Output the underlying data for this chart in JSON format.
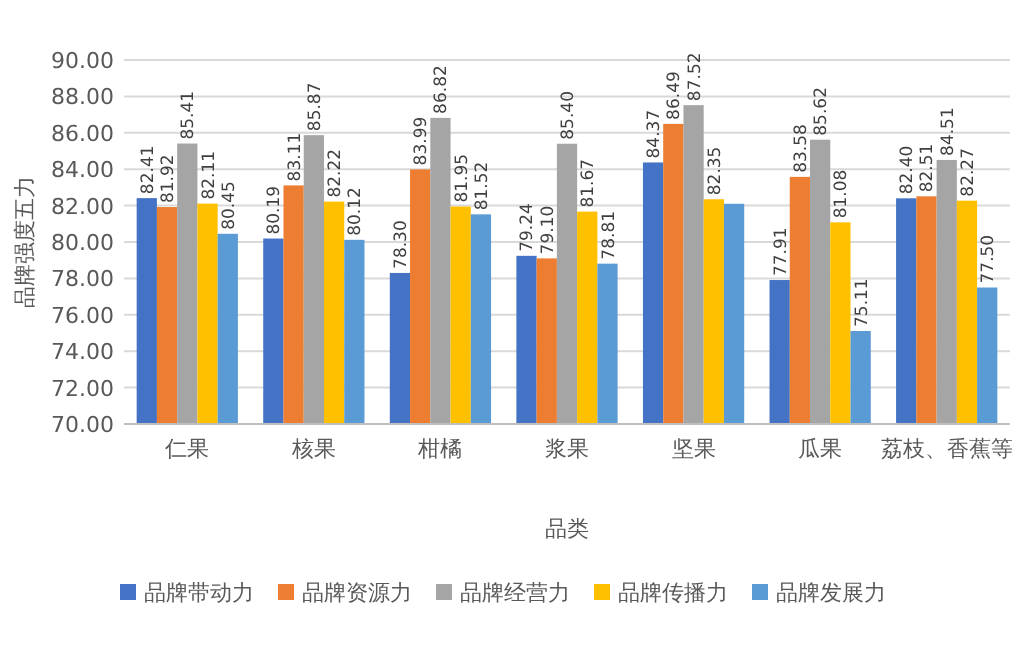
{
  "chart_data": {
    "type": "bar",
    "xlabel": "品类",
    "ylabel": "品牌强度五力",
    "categories": [
      "仁果",
      "核果",
      "柑橘",
      "浆果",
      "坚果",
      "瓜果",
      "荔枝、香蕉等"
    ],
    "series": [
      {
        "name": "品牌带动力",
        "color": "#4472c4",
        "values": [
          82.41,
          80.19,
          78.3,
          79.24,
          84.37,
          77.91,
          82.4
        ],
        "value_labels": [
          "82.41",
          "80.19",
          "78.30",
          "79.24",
          "84.37",
          "77.91",
          "82.40"
        ]
      },
      {
        "name": "品牌资源力",
        "color": "#ed7d31",
        "values": [
          81.92,
          83.11,
          83.99,
          79.1,
          86.49,
          83.58,
          82.51
        ],
        "value_labels": [
          "81.92",
          "83.11",
          "83.99",
          "79.10",
          "86.49",
          "83.58",
          "82.51"
        ]
      },
      {
        "name": "品牌经营力",
        "color": "#a5a5a5",
        "values": [
          85.41,
          85.87,
          86.82,
          85.4,
          87.52,
          85.62,
          84.51
        ],
        "value_labels": [
          "85.41",
          "85.87",
          "86.82",
          "85.40",
          "87.52",
          "85.62",
          "84.51"
        ]
      },
      {
        "name": "品牌传播力",
        "color": "#ffc000",
        "values": [
          82.11,
          82.22,
          81.95,
          81.67,
          82.35,
          81.08,
          82.27
        ],
        "value_labels": [
          "82.11",
          "82.22",
          "81.95",
          "81.67",
          "82.35",
          "81.08",
          "82.27"
        ]
      },
      {
        "name": "品牌发展力",
        "color": "#5b9bd5",
        "values": [
          80.45,
          80.12,
          81.52,
          78.81,
          82.1,
          75.11,
          77.5
        ],
        "value_labels": [
          "80.45",
          "80.12",
          "81.52",
          "78.81",
          null,
          "75.11",
          "77.50"
        ]
      }
    ],
    "ylim": [
      70,
      90
    ],
    "yticks": [
      {
        "value": 70,
        "label": "70.00"
      },
      {
        "value": 72,
        "label": "72.00"
      },
      {
        "value": 74,
        "label": "74.00"
      },
      {
        "value": 76,
        "label": "76.00"
      },
      {
        "value": 78,
        "label": "78.00"
      },
      {
        "value": 80,
        "label": "80.00"
      },
      {
        "value": 82,
        "label": "82.00"
      },
      {
        "value": 84,
        "label": "84.00"
      },
      {
        "value": 86,
        "label": "86.00"
      },
      {
        "value": 88,
        "label": "88.00"
      },
      {
        "value": 90,
        "label": "90.00"
      }
    ],
    "grid": "y",
    "legend": "bottom"
  }
}
